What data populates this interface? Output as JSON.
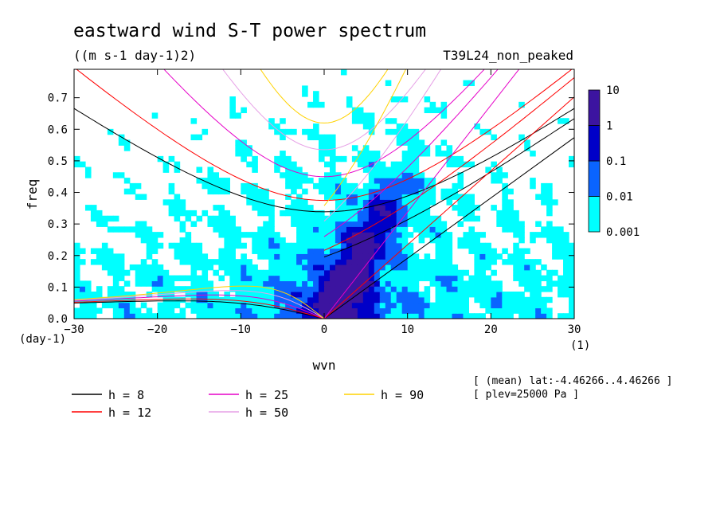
{
  "chart_data": {
    "type": "heatmap",
    "title": "eastward wind S-T power spectrum",
    "subtitle": "((m s-1 day-1)2)",
    "run_label": "T39L24_non_peaked",
    "xlabel": "wvn",
    "ylabel": "freq",
    "x_unit": "(1)",
    "y_unit": "(day-1)",
    "xlim": [
      -30,
      30
    ],
    "ylim": [
      0,
      0.79
    ],
    "xticks": [
      -30,
      -20,
      -10,
      0,
      10,
      20,
      30
    ],
    "yticks": [
      0.0,
      0.1,
      0.2,
      0.3,
      0.4,
      0.5,
      0.6,
      0.7
    ],
    "ytick_labels": [
      "0.0",
      "0.1",
      "0.2",
      "0.3",
      "0.4",
      "0.5",
      "0.6",
      "0.7"
    ],
    "colorbar": {
      "levels": [
        "0.001",
        "0.01",
        "0.1",
        "1",
        "10"
      ],
      "colors": [
        "#00ffff",
        "#0a64ff",
        "#0000c8",
        "#3c14a0"
      ],
      "scale": "log"
    },
    "dispersion_curves": [
      {
        "label": "h =  8",
        "h": 8,
        "color": "#000000"
      },
      {
        "label": "h = 12",
        "h": 12,
        "color": "#ff0000"
      },
      {
        "label": "h = 25",
        "h": 25,
        "color": "#e600c8"
      },
      {
        "label": "h = 50",
        "h": 50,
        "color": "#e6a0e6"
      },
      {
        "label": "h = 90",
        "h": 90,
        "color": "#ffd200"
      }
    ],
    "annotations": [
      "[ (mean) lat:-4.46266..4.46266 ]",
      "[ plev=25000 Pa ]"
    ]
  }
}
